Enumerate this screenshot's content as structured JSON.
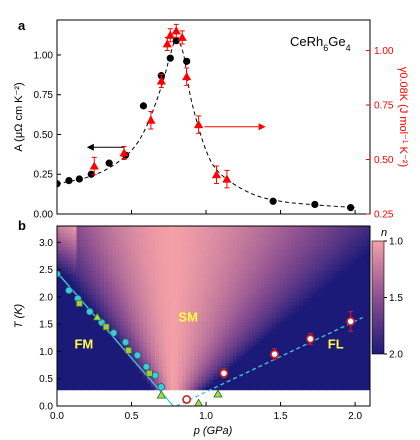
{
  "chart_data": [
    {
      "type": "scatter",
      "panel_label": "a",
      "compound": "CeRh6Ge4",
      "xlim": [
        0,
        2.1
      ],
      "ylim_left": [
        0,
        1.22
      ],
      "ylim_right": [
        0.25,
        1.14
      ],
      "ylabel_left": "A (μΩ cm K⁻²)",
      "ylabel_right": "γ0.08K (J mol⁻¹ K⁻²)",
      "xticks": [
        0.0,
        0.5,
        1.0,
        1.5,
        2.0
      ],
      "yticks_left": [
        0.0,
        0.25,
        0.5,
        0.75,
        1.0
      ],
      "yticks_right": [
        0.25,
        0.5,
        0.75,
        1.0
      ],
      "grid": false,
      "series": [
        {
          "axis": "left",
          "marker": "circle",
          "color": "#000000",
          "x": [
            0.0,
            0.08,
            0.15,
            0.23,
            0.35,
            0.46,
            0.58,
            0.7,
            0.76,
            0.8,
            0.87,
            1.45,
            1.73,
            1.97
          ],
          "y": [
            0.19,
            0.21,
            0.22,
            0.25,
            0.32,
            0.37,
            0.68,
            0.87,
            0.98,
            1.09,
            0.96,
            0.08,
            0.06,
            0.04
          ]
        },
        {
          "axis": "right",
          "marker": "triangle",
          "color": "#ff0000",
          "x": [
            0.25,
            0.45,
            0.63,
            0.7,
            0.74,
            0.76,
            0.8,
            0.84,
            0.87,
            0.95,
            1.07,
            1.14
          ],
          "y": [
            0.47,
            0.53,
            0.68,
            0.86,
            1.03,
            1.07,
            1.09,
            1.06,
            0.88,
            0.66,
            0.43,
            0.41
          ],
          "yerr": [
            0.04,
            0.03,
            0.04,
            0.03,
            0.03,
            0.03,
            0.03,
            0.03,
            0.04,
            0.04,
            0.04,
            0.04
          ]
        }
      ],
      "trend_line": {
        "style": "dashed",
        "x": [
          0.0,
          0.2,
          0.35,
          0.5,
          0.6,
          0.7,
          0.76,
          0.8,
          0.85,
          0.9,
          1.0,
          1.1,
          1.3,
          1.5,
          1.7,
          2.0
        ],
        "y": [
          0.19,
          0.23,
          0.29,
          0.4,
          0.55,
          0.8,
          1.0,
          1.1,
          1.0,
          0.72,
          0.4,
          0.25,
          0.13,
          0.08,
          0.06,
          0.04
        ]
      },
      "annotations": [
        {
          "type": "arrow",
          "direction": "left",
          "axis": "left",
          "x_from": 0.45,
          "x_to": 0.2,
          "y": 0.42
        },
        {
          "type": "arrow",
          "direction": "right",
          "axis": "right",
          "x_from": 0.99,
          "x_to": 1.4,
          "y": 0.65
        }
      ]
    },
    {
      "type": "heatmap",
      "panel_label": "b",
      "xlim": [
        0,
        2.1
      ],
      "ylim": [
        0,
        3.3
      ],
      "xlabel": "p (GPa)",
      "ylabel": "T (K)",
      "xticks": [
        0.0,
        0.5,
        1.0,
        1.5,
        2.0
      ],
      "yticks": [
        0.0,
        0.5,
        1.0,
        1.5,
        2.0,
        2.5,
        3.0
      ],
      "colorbar": {
        "label": "n",
        "min": 1.0,
        "max": 2.0,
        "ticks": [
          1.0,
          1.5,
          2.0
        ],
        "colors": [
          "#f4a0a7",
          "#8c4f90",
          "#1c1a78"
        ]
      },
      "map_data_range_T": [
        0.3,
        3.3
      ],
      "map_description_levels": {
        "center_x": 0.78,
        "base_half_width_at_T0": 0.05,
        "half_width_growth_per_K": 0.28
      },
      "region_labels": [
        {
          "text": "FM",
          "x": 0.18,
          "y": 1.05
        },
        {
          "text": "SM",
          "x": 0.88,
          "y": 1.55
        },
        {
          "text": "FL",
          "x": 1.87,
          "y": 1.05
        }
      ],
      "series": [
        {
          "name": "",
          "marker": "circle",
          "color": "#40c8d8",
          "x": [
            0.0,
            0.08,
            0.14,
            0.22,
            0.3,
            0.38,
            0.46,
            0.54,
            0.6,
            0.66,
            0.7
          ],
          "y": [
            2.42,
            2.12,
            1.97,
            1.73,
            1.53,
            1.34,
            1.17,
            0.93,
            0.72,
            0.56,
            0.35
          ]
        },
        {
          "name": "",
          "marker": "square",
          "color": "#9ec84a",
          "x": [
            0.15,
            0.33,
            0.48,
            0.62
          ],
          "y": [
            1.88,
            1.45,
            1.02,
            0.6
          ]
        },
        {
          "name": "",
          "marker": "triangle",
          "color": "#a0dc50",
          "x": [
            0.27,
            0.7,
            0.95,
            1.08
          ],
          "y": [
            1.63,
            0.2,
            0.05,
            0.22
          ]
        },
        {
          "name": "",
          "marker": "circle",
          "color": "#ffffff",
          "edge": "#d02020",
          "x": [
            0.87,
            1.12,
            1.46,
            1.7,
            1.97
          ],
          "y": [
            0.12,
            0.6,
            0.95,
            1.23,
            1.55
          ],
          "yerr": [
            0.04,
            0.08,
            0.1,
            0.1,
            0.18
          ]
        }
      ],
      "fit_lines": [
        {
          "style": "solid",
          "color": "#40c8d8",
          "x": [
            0.0,
            0.78
          ],
          "y": [
            2.45,
            0.0
          ]
        },
        {
          "style": "dashed",
          "color": "#40c8d8",
          "x": [
            0.8,
            2.05
          ],
          "y": [
            0.0,
            1.62
          ]
        }
      ]
    }
  ]
}
